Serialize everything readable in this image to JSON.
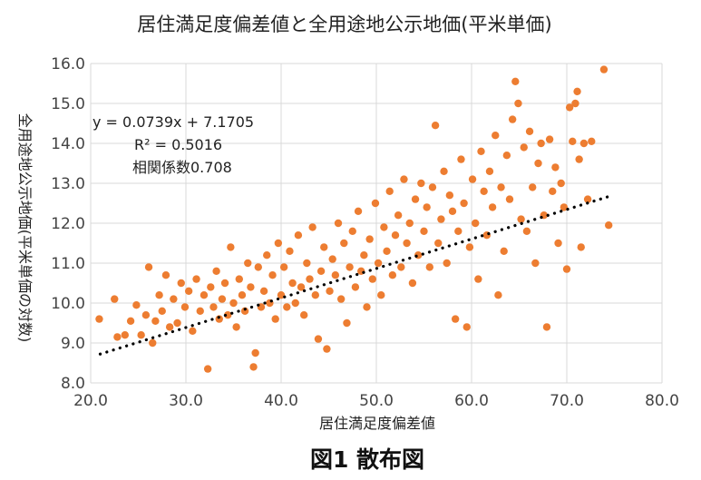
{
  "figure_caption": "図1 散布図",
  "chart_data": {
    "type": "scatter",
    "title": "居住満足度偏差値と全用途地公示地価(平米単価)",
    "xlabel": "居住満足度偏差値",
    "ylabel": "全用途地公示地価(平米単価の対数)",
    "xlim": [
      20.0,
      80.0
    ],
    "ylim": [
      8.0,
      16.0
    ],
    "x_ticks": [
      "20.0",
      "30.0",
      "40.0",
      "50.0",
      "60.0",
      "70.0",
      "80.0"
    ],
    "y_ticks": [
      "8.0",
      "9.0",
      "10.0",
      "11.0",
      "12.0",
      "13.0",
      "14.0",
      "15.0",
      "16.0"
    ],
    "grid": true,
    "marker_color": "#ED7D31",
    "trendline": {
      "type": "linear",
      "slope": 0.0739,
      "intercept": 7.1705,
      "x_range": [
        21.0,
        74.5
      ],
      "style": "dotted",
      "color": "#000000"
    },
    "annotations": {
      "equation": "y = 0.0739x + 7.1705",
      "r_squared": "R² = 0.5016",
      "correlation": "相関係数0.708"
    },
    "points": [
      [
        20.9,
        9.6
      ],
      [
        22.5,
        10.1
      ],
      [
        22.8,
        9.15
      ],
      [
        23.6,
        9.2
      ],
      [
        24.2,
        9.55
      ],
      [
        24.8,
        9.95
      ],
      [
        25.3,
        9.2
      ],
      [
        25.8,
        9.7
      ],
      [
        26.1,
        10.9
      ],
      [
        26.5,
        9.0
      ],
      [
        26.8,
        9.55
      ],
      [
        27.2,
        10.2
      ],
      [
        27.5,
        9.8
      ],
      [
        27.9,
        10.7
      ],
      [
        28.3,
        9.4
      ],
      [
        28.7,
        10.1
      ],
      [
        29.1,
        9.5
      ],
      [
        29.5,
        10.5
      ],
      [
        29.9,
        9.9
      ],
      [
        30.3,
        10.3
      ],
      [
        30.7,
        9.3
      ],
      [
        31.1,
        10.6
      ],
      [
        31.5,
        9.8
      ],
      [
        31.9,
        10.2
      ],
      [
        32.3,
        8.35
      ],
      [
        32.6,
        10.4
      ],
      [
        32.9,
        9.9
      ],
      [
        33.2,
        10.8
      ],
      [
        33.5,
        9.6
      ],
      [
        33.8,
        10.1
      ],
      [
        34.1,
        10.5
      ],
      [
        34.4,
        9.7
      ],
      [
        34.7,
        11.4
      ],
      [
        35.0,
        10.0
      ],
      [
        35.3,
        9.4
      ],
      [
        35.6,
        10.6
      ],
      [
        35.9,
        10.2
      ],
      [
        36.2,
        9.8
      ],
      [
        36.5,
        11.0
      ],
      [
        36.8,
        10.4
      ],
      [
        37.1,
        8.4
      ],
      [
        37.3,
        8.75
      ],
      [
        37.6,
        10.9
      ],
      [
        37.9,
        9.9
      ],
      [
        38.2,
        10.3
      ],
      [
        38.5,
        11.2
      ],
      [
        38.8,
        10.0
      ],
      [
        39.1,
        10.7
      ],
      [
        39.4,
        9.6
      ],
      [
        39.7,
        11.5
      ],
      [
        40.0,
        10.2
      ],
      [
        40.3,
        10.9
      ],
      [
        40.6,
        9.9
      ],
      [
        40.9,
        11.3
      ],
      [
        41.2,
        10.5
      ],
      [
        41.5,
        10.0
      ],
      [
        41.8,
        11.7
      ],
      [
        42.1,
        10.4
      ],
      [
        42.4,
        9.7
      ],
      [
        42.7,
        11.0
      ],
      [
        43.0,
        10.6
      ],
      [
        43.3,
        11.9
      ],
      [
        43.6,
        10.2
      ],
      [
        43.9,
        9.1
      ],
      [
        44.2,
        10.8
      ],
      [
        44.5,
        11.4
      ],
      [
        44.8,
        8.85
      ],
      [
        45.1,
        10.3
      ],
      [
        45.4,
        11.1
      ],
      [
        45.7,
        10.7
      ],
      [
        46.0,
        12.0
      ],
      [
        46.3,
        10.1
      ],
      [
        46.6,
        11.5
      ],
      [
        46.9,
        9.5
      ],
      [
        47.2,
        10.9
      ],
      [
        47.5,
        11.8
      ],
      [
        47.8,
        10.4
      ],
      [
        48.1,
        12.3
      ],
      [
        48.4,
        10.8
      ],
      [
        48.7,
        11.2
      ],
      [
        49.0,
        9.9
      ],
      [
        49.3,
        11.6
      ],
      [
        49.6,
        10.6
      ],
      [
        49.9,
        12.5
      ],
      [
        50.2,
        11.0
      ],
      [
        50.5,
        10.2
      ],
      [
        50.8,
        11.9
      ],
      [
        51.1,
        11.3
      ],
      [
        51.4,
        12.8
      ],
      [
        51.7,
        10.7
      ],
      [
        52.0,
        11.7
      ],
      [
        52.3,
        12.2
      ],
      [
        52.6,
        10.9
      ],
      [
        52.9,
        13.1
      ],
      [
        53.2,
        11.5
      ],
      [
        53.5,
        12.0
      ],
      [
        53.8,
        10.5
      ],
      [
        54.1,
        12.6
      ],
      [
        54.4,
        11.2
      ],
      [
        54.7,
        13.0
      ],
      [
        55.0,
        11.8
      ],
      [
        55.3,
        12.4
      ],
      [
        55.6,
        10.9
      ],
      [
        55.9,
        12.9
      ],
      [
        56.2,
        14.45
      ],
      [
        56.5,
        11.5
      ],
      [
        56.8,
        12.1
      ],
      [
        57.1,
        13.3
      ],
      [
        57.4,
        11.0
      ],
      [
        57.7,
        12.7
      ],
      [
        58.0,
        12.3
      ],
      [
        58.3,
        9.6
      ],
      [
        58.6,
        11.8
      ],
      [
        58.9,
        13.6
      ],
      [
        59.2,
        12.5
      ],
      [
        59.5,
        9.4
      ],
      [
        59.8,
        11.4
      ],
      [
        60.1,
        13.1
      ],
      [
        60.4,
        12.0
      ],
      [
        60.7,
        10.6
      ],
      [
        61.0,
        13.8
      ],
      [
        61.3,
        12.8
      ],
      [
        61.6,
        11.7
      ],
      [
        61.9,
        13.3
      ],
      [
        62.2,
        12.4
      ],
      [
        62.5,
        14.2
      ],
      [
        62.8,
        10.2
      ],
      [
        63.1,
        12.9
      ],
      [
        63.4,
        11.3
      ],
      [
        63.7,
        13.7
      ],
      [
        64.0,
        12.6
      ],
      [
        64.3,
        14.6
      ],
      [
        64.6,
        15.55
      ],
      [
        64.9,
        15.0
      ],
      [
        65.2,
        12.1
      ],
      [
        65.5,
        13.9
      ],
      [
        65.8,
        11.8
      ],
      [
        66.1,
        14.3
      ],
      [
        66.4,
        12.9
      ],
      [
        66.7,
        11.0
      ],
      [
        67.0,
        13.5
      ],
      [
        67.3,
        14.0
      ],
      [
        67.6,
        12.2
      ],
      [
        67.9,
        9.4
      ],
      [
        68.2,
        14.1
      ],
      [
        68.5,
        12.8
      ],
      [
        68.8,
        13.4
      ],
      [
        69.1,
        11.5
      ],
      [
        69.4,
        13.0
      ],
      [
        69.7,
        12.4
      ],
      [
        70.0,
        10.85
      ],
      [
        70.3,
        14.9
      ],
      [
        70.6,
        14.05
      ],
      [
        70.9,
        15.0
      ],
      [
        71.1,
        15.3
      ],
      [
        71.3,
        13.6
      ],
      [
        71.5,
        11.4
      ],
      [
        71.8,
        14.0
      ],
      [
        72.2,
        12.6
      ],
      [
        72.6,
        14.05
      ],
      [
        73.9,
        15.85
      ],
      [
        74.4,
        11.95
      ]
    ]
  }
}
